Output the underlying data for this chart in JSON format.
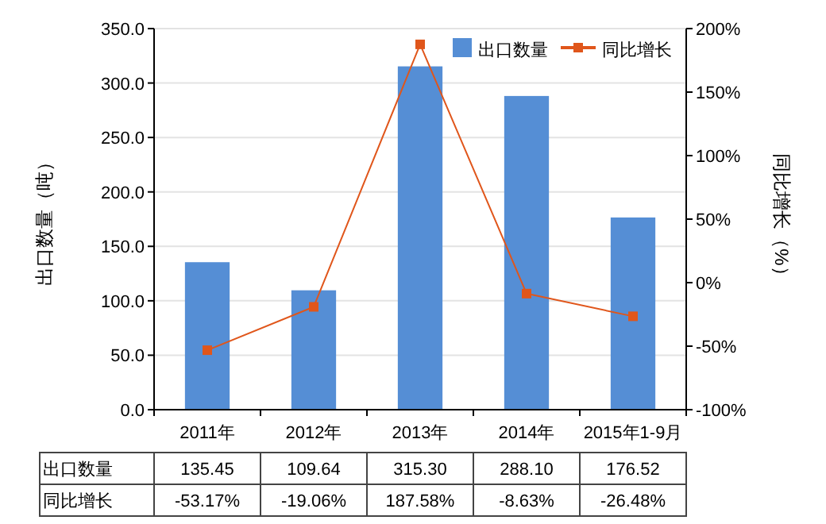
{
  "chart_data": {
    "type": "bar",
    "ylabel": "出口数量（吨）",
    "y2label": "同比增长（%）",
    "categories": [
      "2011年",
      "2012年",
      "2013年",
      "2014年",
      "2015年1-9月"
    ],
    "series": [
      {
        "name": "出口数量",
        "color": "#558ed5",
        "values": [
          135.45,
          109.64,
          315.3,
          288.1,
          176.52
        ],
        "value_labels": [
          "135.45",
          "109.64",
          "315.30",
          "288.10",
          "176.52"
        ]
      },
      {
        "name": "同比增长",
        "type": "line",
        "axis": "y2",
        "color": "#e0561b",
        "marker": "square",
        "values": [
          -53.17,
          -19.06,
          187.58,
          -8.63,
          -26.48
        ],
        "value_labels": [
          "-53.17%",
          "-19.06%",
          "187.58%",
          "-8.63%",
          "-26.48%"
        ]
      }
    ],
    "ylim": [
      0,
      350
    ],
    "yticks": [
      {
        "value": 0,
        "label": "0.0"
      },
      {
        "value": 50,
        "label": "50.0"
      },
      {
        "value": 100,
        "label": "100.0"
      },
      {
        "value": 150,
        "label": "150.0"
      },
      {
        "value": 200,
        "label": "200.0"
      },
      {
        "value": 250,
        "label": "250.0"
      },
      {
        "value": 300,
        "label": "300.0"
      },
      {
        "value": 350,
        "label": "350.0"
      }
    ],
    "y2lim": [
      -100,
      200
    ],
    "y2ticks": [
      {
        "value": -100,
        "label": "-100%"
      },
      {
        "value": -50,
        "label": "-50%"
      },
      {
        "value": 0,
        "label": "0%"
      },
      {
        "value": 50,
        "label": "50%"
      },
      {
        "value": 100,
        "label": "100%"
      },
      {
        "value": 150,
        "label": "150%"
      },
      {
        "value": 200,
        "label": "200%"
      }
    ],
    "grid": "y",
    "legend": "top right"
  }
}
